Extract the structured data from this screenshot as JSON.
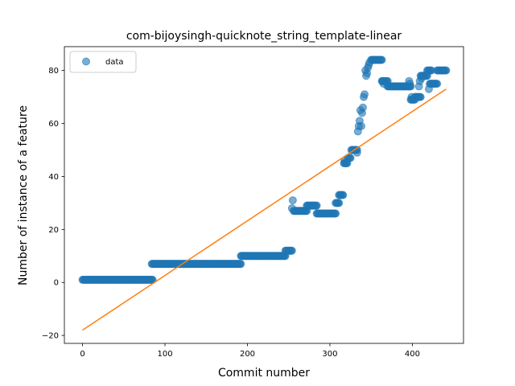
{
  "chart_data": {
    "type": "scatter",
    "title": "com-bijoysingh-quicknote_string_template-linear",
    "xlabel": "Commit number",
    "ylabel": "Number of instance of a feature",
    "xlim": [
      -22,
      462
    ],
    "ylim": [
      -23,
      89
    ],
    "xticks": [
      0,
      100,
      200,
      300,
      400
    ],
    "yticks": [
      -20,
      0,
      20,
      40,
      60,
      80
    ],
    "legend": {
      "position": "top-left",
      "entries": [
        "data"
      ]
    },
    "grid": false,
    "colors": {
      "data": "#1f77b4",
      "fit": "#ff7f0e"
    },
    "series": [
      {
        "name": "data",
        "kind": "scatter",
        "segments": [
          {
            "x_start": 0,
            "x_end": 85,
            "y": 1
          },
          {
            "x_start": 84,
            "x_end": 192,
            "y": 7
          },
          {
            "x_start": 192,
            "x_end": 246,
            "y": 10
          },
          {
            "x_start": 246,
            "x_end": 254,
            "y": 12
          },
          {
            "x_start": 256,
            "x_end": 272,
            "y": 27
          },
          {
            "x_start": 272,
            "x_end": 284,
            "y": 29
          },
          {
            "x_start": 284,
            "x_end": 307,
            "y": 26
          },
          {
            "x_start": 307,
            "x_end": 311,
            "y": 30
          },
          {
            "x_start": 311,
            "x_end": 316,
            "y": 33
          },
          {
            "x_start": 317,
            "x_end": 321,
            "y": 45
          },
          {
            "x_start": 322,
            "x_end": 325,
            "y": 47
          },
          {
            "x_start": 326,
            "x_end": 333,
            "y": 50
          },
          {
            "x_start": 350,
            "x_end": 363,
            "y": 84
          },
          {
            "x_start": 363,
            "x_end": 370,
            "y": 76
          },
          {
            "x_start": 370,
            "x_end": 398,
            "y": 74
          },
          {
            "x_start": 398,
            "x_end": 403,
            "y": 69
          },
          {
            "x_start": 403,
            "x_end": 410,
            "y": 70
          },
          {
            "x_start": 410,
            "x_end": 418,
            "y": 78
          },
          {
            "x_start": 418,
            "x_end": 423,
            "y": 80
          },
          {
            "x_start": 421,
            "x_end": 430,
            "y": 75
          },
          {
            "x_start": 430,
            "x_end": 441,
            "y": 80
          }
        ],
        "points": [
          [
            254,
            28
          ],
          [
            255,
            31
          ],
          [
            318,
            46
          ],
          [
            333,
            49
          ],
          [
            334,
            57
          ],
          [
            335,
            59
          ],
          [
            336,
            61
          ],
          [
            337,
            65
          ],
          [
            338,
            59
          ],
          [
            339,
            64
          ],
          [
            340,
            66
          ],
          [
            341,
            70
          ],
          [
            342,
            71
          ],
          [
            343,
            80
          ],
          [
            344,
            78
          ],
          [
            345,
            79
          ],
          [
            346,
            81
          ],
          [
            347,
            82
          ],
          [
            348,
            83
          ],
          [
            364,
            76
          ],
          [
            365,
            75
          ],
          [
            396,
            76
          ],
          [
            397,
            75
          ],
          [
            399,
            70
          ],
          [
            408,
            74
          ],
          [
            409,
            76
          ],
          [
            411,
            77
          ],
          [
            420,
            73
          ]
        ]
      },
      {
        "name": "",
        "kind": "line",
        "x": [
          0,
          441
        ],
        "y": [
          -18,
          73
        ]
      }
    ]
  }
}
